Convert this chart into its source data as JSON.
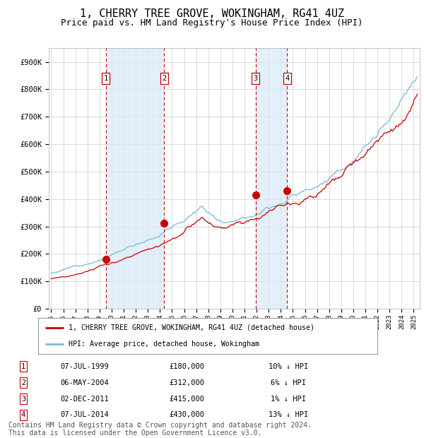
{
  "title": "1, CHERRY TREE GROVE, WOKINGHAM, RG41 4UZ",
  "subtitle": "Price paid vs. HM Land Registry's House Price Index (HPI)",
  "title_fontsize": 11,
  "subtitle_fontsize": 9,
  "xlim": [
    1994.8,
    2025.5
  ],
  "ylim": [
    0,
    950000
  ],
  "yticks": [
    0,
    100000,
    200000,
    300000,
    400000,
    500000,
    600000,
    700000,
    800000,
    900000
  ],
  "ytick_labels": [
    "£0",
    "£100K",
    "£200K",
    "£300K",
    "£400K",
    "£500K",
    "£600K",
    "£700K",
    "£800K",
    "£900K"
  ],
  "hpi_color": "#7ab8d9",
  "price_color": "#cc0000",
  "marker_color": "#cc0000",
  "grid_color": "#cccccc",
  "bg_color": "#ffffff",
  "sale_color_bg": "#d8eaf7",
  "dashed_line_color": "#cc0000",
  "legend_label_price": "1, CHERRY TREE GROVE, WOKINGHAM, RG41 4UZ (detached house)",
  "legend_label_hpi": "HPI: Average price, detached house, Wokingham",
  "sales": [
    {
      "num": 1,
      "date": 1999.52,
      "price": 180000,
      "label": "07-JUL-1999",
      "price_str": "£180,000",
      "pct": "10% ↓ HPI"
    },
    {
      "num": 2,
      "date": 2004.35,
      "price": 312000,
      "label": "06-MAY-2004",
      "price_str": "£312,000",
      "pct": "6% ↓ HPI"
    },
    {
      "num": 3,
      "date": 2011.92,
      "price": 415000,
      "label": "02-DEC-2011",
      "price_str": "£415,000",
      "pct": "1% ↓ HPI"
    },
    {
      "num": 4,
      "date": 2014.52,
      "price": 430000,
      "label": "07-JUL-2014",
      "price_str": "£430,000",
      "pct": "13% ↓ HPI"
    }
  ],
  "footer": "Contains HM Land Registry data © Crown copyright and database right 2024.\nThis data is licensed under the Open Government Licence v3.0.",
  "footer_fontsize": 7
}
